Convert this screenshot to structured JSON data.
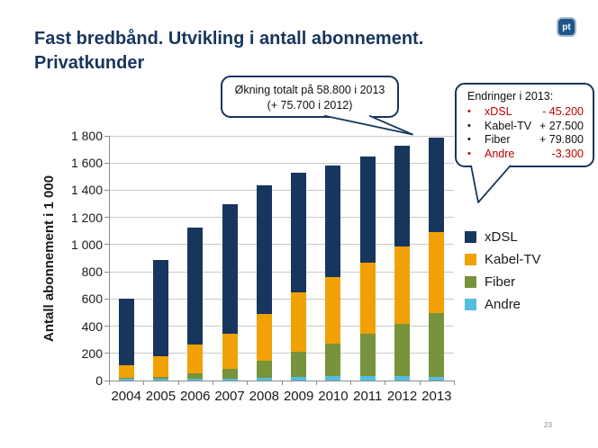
{
  "slide": {
    "title_line1": "Fast bredbånd. Utvikling i antall abonnement.",
    "title_line2": "Privatkunder",
    "logo_text": "pt",
    "page_number": "23"
  },
  "callout_total": {
    "line1": "Økning totalt på 58.800 i 2013",
    "line2": "(+ 75.700 i 2012)"
  },
  "callout_changes": {
    "title": "Endringer i 2013:",
    "red": "#C00000",
    "black": "#111111",
    "items": [
      {
        "label": "xDSL",
        "value": "- 45.200",
        "color": "#C00000"
      },
      {
        "label": "Kabel-TV",
        "value": "+ 27.500",
        "color": "#111111"
      },
      {
        "label": "Fiber",
        "value": "+ 79.800",
        "color": "#111111"
      },
      {
        "label": "Andre",
        "value": "-3.300",
        "color": "#C00000"
      }
    ]
  },
  "chart_data": {
    "type": "bar",
    "stacked": true,
    "title": "",
    "xlabel": "",
    "ylabel": "Antall abonnement i 1 000",
    "ylim": [
      0,
      1800
    ],
    "ytick_step": 200,
    "ytick_labels": [
      "0",
      "200",
      "400",
      "600",
      "800",
      "1 000",
      "1 200",
      "1 400",
      "1 600",
      "1 800"
    ],
    "grid": true,
    "legend_position": "right",
    "legend_order": [
      "xDSL",
      "Kabel-TV",
      "Fiber",
      "Andre"
    ],
    "categories": [
      "2004",
      "2005",
      "2006",
      "2007",
      "2008",
      "2009",
      "2010",
      "2011",
      "2012",
      "2013"
    ],
    "series": [
      {
        "name": "Andre",
        "color": "#55BDDE",
        "values": [
          10,
          11,
          16,
          15,
          22,
          25,
          31,
          36,
          32,
          29
        ]
      },
      {
        "name": "Fiber",
        "color": "#77933C",
        "values": [
          13,
          16,
          38,
          70,
          125,
          188,
          239,
          307,
          385,
          465
        ]
      },
      {
        "name": "Kabel-TV",
        "color": "#F2A104",
        "values": [
          90,
          153,
          208,
          259,
          343,
          433,
          491,
          521,
          569,
          597
        ]
      },
      {
        "name": "xDSL",
        "color": "#17365D",
        "values": [
          487,
          705,
          863,
          956,
          945,
          884,
          822,
          786,
          743,
          698
        ]
      }
    ],
    "totals": [
      600,
      885,
      1125,
      1300,
      1435,
      1530,
      1583,
      1650,
      1729,
      1789
    ]
  }
}
